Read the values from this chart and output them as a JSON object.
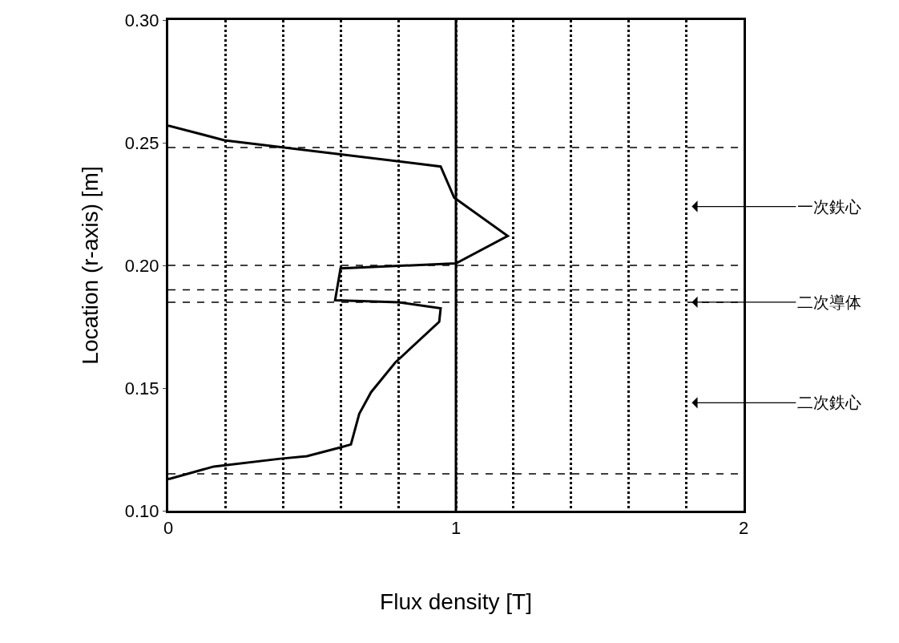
{
  "chart_data": {
    "type": "line",
    "xlabel": "Flux density [T]",
    "ylabel": "Location (r-axis) [m]",
    "series": [
      {
        "color": "#000000",
        "x": [
          0,
          0.195,
          0.947,
          0.994,
          1.18,
          1.0,
          0.599,
          0.58,
          0.8,
          0.947,
          0.942,
          0.789,
          0.705,
          0.664,
          0.635,
          0.599,
          0.482,
          0.39,
          0.158,
          0.005,
          0
        ],
        "values": [
          0.257,
          0.251,
          0.2403,
          0.2276,
          0.212,
          0.2008,
          0.1988,
          0.1858,
          0.185,
          0.1825,
          0.177,
          0.1604,
          0.1483,
          0.1395,
          0.127,
          0.1258,
          0.1222,
          0.1212,
          0.118,
          0.113,
          0.113
        ]
      }
    ],
    "xlim": [
      0,
      2
    ],
    "ylim": [
      0.1,
      0.3
    ],
    "xticks": [
      0,
      {
        "value": 0.2,
        "label": null
      },
      {
        "value": 0.4,
        "label": null
      },
      {
        "value": 0.6,
        "label": null
      },
      {
        "value": 0.8,
        "label": null
      },
      1,
      {
        "value": 1.2,
        "label": null
      },
      {
        "value": 1.4,
        "label": null
      },
      {
        "value": 1.6,
        "label": null
      },
      {
        "value": 1.8,
        "label": null
      },
      2
    ],
    "yticks": [
      {
        "value": 0.1,
        "label": "0.10"
      },
      {
        "value": 0.15,
        "label": "0.15"
      },
      {
        "value": 0.2,
        "label": "0.20"
      },
      {
        "value": 0.25,
        "label": "0.25"
      },
      {
        "value": 0.3,
        "label": "0.30"
      }
    ],
    "grid": "x",
    "marker": "none",
    "line_style": "solid",
    "ref_lines": [
      {
        "axis": "x",
        "value": 1,
        "line_style": "solid"
      },
      {
        "axis": "y",
        "value": 0.248,
        "line_style": "dashed"
      },
      {
        "axis": "y",
        "value": 0.2,
        "line_style": "dashed"
      },
      {
        "axis": "y",
        "value": 0.19,
        "line_style": "dashed"
      },
      {
        "axis": "y",
        "value": 0.185,
        "line_style": "dashed"
      },
      {
        "axis": "y",
        "value": 0.115,
        "line_style": "dashed"
      }
    ],
    "annotations": [
      "一次鉄心",
      {
        "text": "二次導体",
        "x": 1.82,
        "y": 0.185
      },
      "二次鉄心"
    ]
  }
}
